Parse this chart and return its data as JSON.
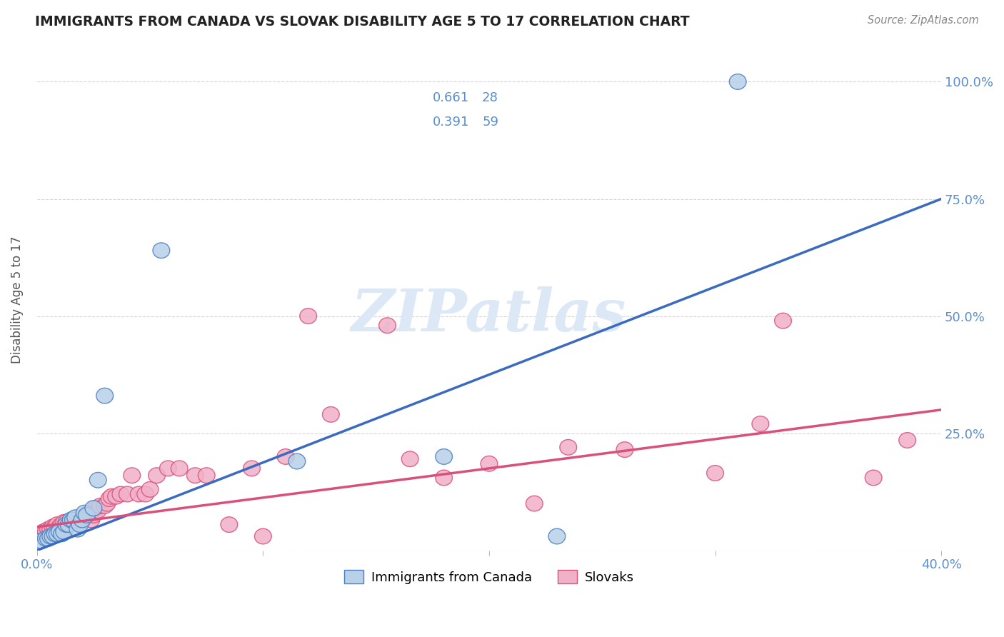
{
  "title": "IMMIGRANTS FROM CANADA VS SLOVAK DISABILITY AGE 5 TO 17 CORRELATION CHART",
  "source": "Source: ZipAtlas.com",
  "ylabel": "Disability Age 5 to 17",
  "xlim": [
    0.0,
    0.4
  ],
  "ylim": [
    0.0,
    1.07
  ],
  "canada_R": "0.661",
  "canada_N": "28",
  "slovak_R": "0.391",
  "slovak_N": "59",
  "canada_fc": "#b8d0e8",
  "canada_ec": "#4a7fc0",
  "slovak_fc": "#f0b0c8",
  "slovak_ec": "#d9507a",
  "canada_line_color": "#3a6bbf",
  "slovak_line_color": "#d9507a",
  "axis_tick_color": "#5b8fcc",
  "title_color": "#222222",
  "grid_color": "#d0d0d0",
  "watermark": "ZIPatlas",
  "watermark_color": "#dce8f5",
  "canada_line_x0": 0.0,
  "canada_line_y0": 0.0,
  "canada_line_x1": 0.4,
  "canada_line_y1": 0.75,
  "slovak_line_x0": 0.0,
  "slovak_line_y0": 0.05,
  "slovak_line_x1": 0.4,
  "slovak_line_y1": 0.3,
  "canada_x": [
    0.002,
    0.004,
    0.005,
    0.006,
    0.007,
    0.008,
    0.009,
    0.01,
    0.011,
    0.012,
    0.013,
    0.014,
    0.015,
    0.016,
    0.017,
    0.018,
    0.019,
    0.02,
    0.021,
    0.022,
    0.025,
    0.027,
    0.03,
    0.055,
    0.115,
    0.18,
    0.23,
    0.31
  ],
  "canada_y": [
    0.02,
    0.025,
    0.025,
    0.03,
    0.03,
    0.035,
    0.035,
    0.04,
    0.035,
    0.04,
    0.055,
    0.055,
    0.065,
    0.065,
    0.07,
    0.045,
    0.055,
    0.065,
    0.08,
    0.075,
    0.09,
    0.15,
    0.33,
    0.64,
    0.19,
    0.2,
    0.03,
    1.0
  ],
  "slovak_x": [
    0.003,
    0.004,
    0.005,
    0.006,
    0.007,
    0.008,
    0.009,
    0.01,
    0.011,
    0.012,
    0.013,
    0.014,
    0.015,
    0.016,
    0.017,
    0.018,
    0.019,
    0.02,
    0.022,
    0.023,
    0.024,
    0.025,
    0.026,
    0.027,
    0.028,
    0.03,
    0.031,
    0.032,
    0.033,
    0.035,
    0.037,
    0.04,
    0.042,
    0.045,
    0.048,
    0.05,
    0.053,
    0.058,
    0.063,
    0.07,
    0.075,
    0.085,
    0.095,
    0.1,
    0.11,
    0.12,
    0.13,
    0.155,
    0.165,
    0.18,
    0.2,
    0.22,
    0.235,
    0.26,
    0.3,
    0.32,
    0.33,
    0.37,
    0.385
  ],
  "slovak_y": [
    0.04,
    0.04,
    0.045,
    0.045,
    0.05,
    0.05,
    0.055,
    0.05,
    0.055,
    0.06,
    0.06,
    0.055,
    0.06,
    0.06,
    0.065,
    0.065,
    0.065,
    0.07,
    0.075,
    0.08,
    0.065,
    0.075,
    0.09,
    0.085,
    0.095,
    0.095,
    0.1,
    0.11,
    0.115,
    0.115,
    0.12,
    0.12,
    0.16,
    0.12,
    0.12,
    0.13,
    0.16,
    0.175,
    0.175,
    0.16,
    0.16,
    0.055,
    0.175,
    0.03,
    0.2,
    0.5,
    0.29,
    0.48,
    0.195,
    0.155,
    0.185,
    0.1,
    0.22,
    0.215,
    0.165,
    0.27,
    0.49,
    0.155,
    0.235
  ]
}
